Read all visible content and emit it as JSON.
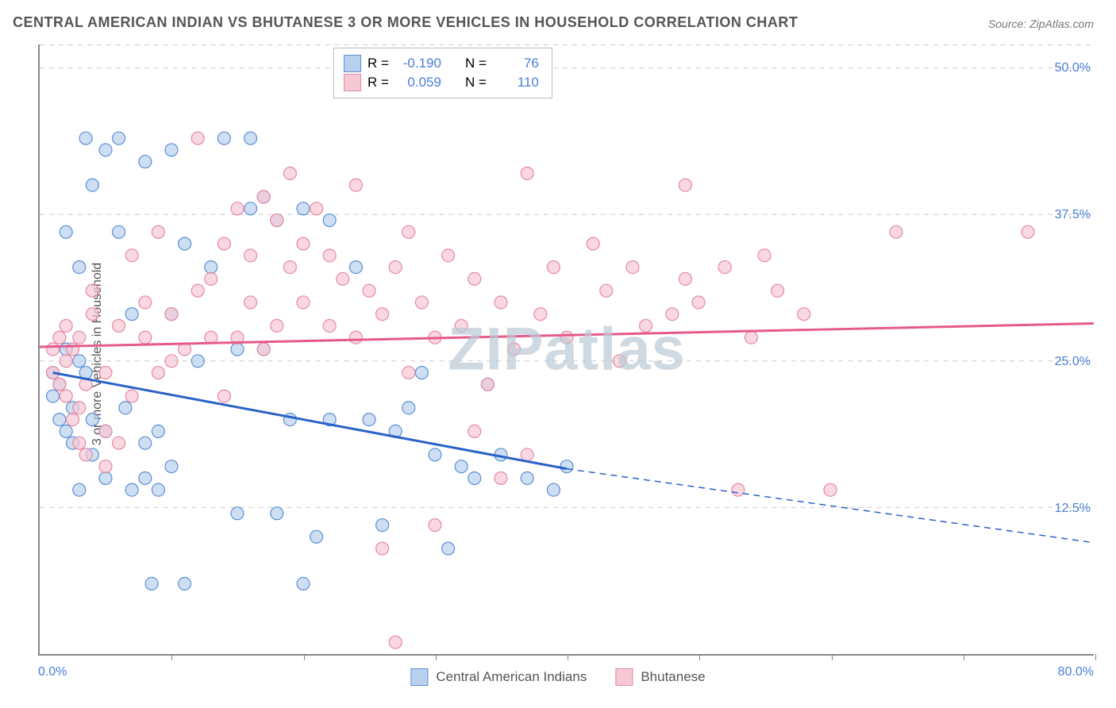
{
  "title": "CENTRAL AMERICAN INDIAN VS BHUTANESE 3 OR MORE VEHICLES IN HOUSEHOLD CORRELATION CHART",
  "source": "Source: ZipAtlas.com",
  "watermark": "ZIPatlas",
  "ylabel": "3 or more Vehicles in Household",
  "axes": {
    "x_min_label": "0.0%",
    "x_max_label": "80.0%",
    "xlim": [
      0,
      80
    ],
    "ylim": [
      0,
      52
    ]
  },
  "y_ticks": [
    {
      "value": 12.5,
      "label": "12.5%"
    },
    {
      "value": 25.0,
      "label": "25.0%"
    },
    {
      "value": 37.5,
      "label": "37.5%"
    },
    {
      "value": 50.0,
      "label": "50.0%"
    }
  ],
  "x_tick_positions": [
    10,
    20,
    30,
    40,
    50,
    60,
    70,
    80
  ],
  "series": [
    {
      "name": "Central American Indians",
      "color_fill": "#b9d1ee",
      "color_stroke": "#5a8fd6",
      "trend_color": "#2a62c6",
      "R": "-0.190",
      "N": "76",
      "trend": {
        "x1": 1,
        "y1": 24.0,
        "x2_solid": 40,
        "y2_solid": 15.8,
        "x2_dash": 80,
        "y2_dash": 9.5
      },
      "points": [
        [
          1,
          22
        ],
        [
          1,
          24
        ],
        [
          1.5,
          20
        ],
        [
          1.5,
          23
        ],
        [
          2,
          19
        ],
        [
          2,
          26
        ],
        [
          2,
          36
        ],
        [
          2.5,
          18
        ],
        [
          2.5,
          21
        ],
        [
          3,
          14
        ],
        [
          3,
          25
        ],
        [
          3,
          33
        ],
        [
          3.5,
          24
        ],
        [
          3.5,
          44
        ],
        [
          4,
          17
        ],
        [
          4,
          20
        ],
        [
          4,
          40
        ],
        [
          5,
          43
        ],
        [
          5,
          15
        ],
        [
          5,
          19
        ],
        [
          6,
          36
        ],
        [
          6,
          44
        ],
        [
          6.5,
          21
        ],
        [
          7,
          14
        ],
        [
          7,
          29
        ],
        [
          8,
          18
        ],
        [
          8,
          15
        ],
        [
          8,
          42
        ],
        [
          8.5,
          6
        ],
        [
          9,
          19
        ],
        [
          9,
          14
        ],
        [
          10,
          16
        ],
        [
          10,
          29
        ],
        [
          10,
          43
        ],
        [
          11,
          6
        ],
        [
          11,
          35
        ],
        [
          12,
          25
        ],
        [
          13,
          33
        ],
        [
          14,
          44
        ],
        [
          15,
          12
        ],
        [
          15,
          26
        ],
        [
          16,
          44
        ],
        [
          16,
          38
        ],
        [
          17,
          39
        ],
        [
          17,
          26
        ],
        [
          18,
          37
        ],
        [
          18,
          12
        ],
        [
          19,
          20
        ],
        [
          20,
          6
        ],
        [
          20,
          38
        ],
        [
          21,
          10
        ],
        [
          22,
          20
        ],
        [
          22,
          37
        ],
        [
          24,
          33
        ],
        [
          25,
          20
        ],
        [
          26,
          11
        ],
        [
          27,
          19
        ],
        [
          28,
          21
        ],
        [
          29,
          24
        ],
        [
          30,
          17
        ],
        [
          31,
          9
        ],
        [
          32,
          16
        ],
        [
          33,
          15
        ],
        [
          34,
          23
        ],
        [
          35,
          17
        ],
        [
          37,
          15
        ],
        [
          39,
          14
        ],
        [
          40,
          16
        ]
      ]
    },
    {
      "name": "Bhutanese",
      "color_fill": "#f6c8d4",
      "color_stroke": "#e689a3",
      "trend_color": "#e6598b",
      "R": "0.059",
      "N": "110",
      "trend": {
        "x1": 0,
        "y1": 26.2,
        "x2_solid": 80,
        "y2_solid": 28.2,
        "x2_dash": 80,
        "y2_dash": 28.2
      },
      "points": [
        [
          1,
          24
        ],
        [
          1,
          26
        ],
        [
          1.5,
          23
        ],
        [
          1.5,
          27
        ],
        [
          2,
          22
        ],
        [
          2,
          25
        ],
        [
          2,
          28
        ],
        [
          2.5,
          20
        ],
        [
          2.5,
          26
        ],
        [
          3,
          18
        ],
        [
          3,
          21
        ],
        [
          3,
          27
        ],
        [
          3.5,
          17
        ],
        [
          3.5,
          23
        ],
        [
          4,
          29
        ],
        [
          4,
          31
        ],
        [
          5,
          16
        ],
        [
          5,
          19
        ],
        [
          5,
          24
        ],
        [
          6,
          18
        ],
        [
          6,
          28
        ],
        [
          7,
          22
        ],
        [
          7,
          34
        ],
        [
          8,
          27
        ],
        [
          8,
          30
        ],
        [
          9,
          24
        ],
        [
          9,
          36
        ],
        [
          10,
          25
        ],
        [
          10,
          29
        ],
        [
          11,
          26
        ],
        [
          12,
          31
        ],
        [
          12,
          44
        ],
        [
          13,
          27
        ],
        [
          13,
          32
        ],
        [
          14,
          22
        ],
        [
          14,
          35
        ],
        [
          15,
          27
        ],
        [
          15,
          38
        ],
        [
          16,
          30
        ],
        [
          16,
          34
        ],
        [
          17,
          26
        ],
        [
          17,
          39
        ],
        [
          18,
          28
        ],
        [
          18,
          37
        ],
        [
          19,
          33
        ],
        [
          19,
          41
        ],
        [
          20,
          30
        ],
        [
          20,
          35
        ],
        [
          21,
          38
        ],
        [
          22,
          28
        ],
        [
          22,
          34
        ],
        [
          23,
          32
        ],
        [
          24,
          27
        ],
        [
          24,
          40
        ],
        [
          25,
          31
        ],
        [
          26,
          9
        ],
        [
          26,
          29
        ],
        [
          27,
          1
        ],
        [
          27,
          33
        ],
        [
          28,
          24
        ],
        [
          28,
          36
        ],
        [
          29,
          30
        ],
        [
          30,
          11
        ],
        [
          30,
          27
        ],
        [
          31,
          34
        ],
        [
          32,
          28
        ],
        [
          33,
          19
        ],
        [
          33,
          32
        ],
        [
          34,
          23
        ],
        [
          35,
          15
        ],
        [
          35,
          30
        ],
        [
          36,
          26
        ],
        [
          37,
          41
        ],
        [
          37,
          17
        ],
        [
          38,
          29
        ],
        [
          39,
          33
        ],
        [
          40,
          27
        ],
        [
          42,
          35
        ],
        [
          43,
          31
        ],
        [
          44,
          25
        ],
        [
          45,
          33
        ],
        [
          46,
          28
        ],
        [
          48,
          29
        ],
        [
          49,
          32
        ],
        [
          49,
          40
        ],
        [
          50,
          30
        ],
        [
          52,
          33
        ],
        [
          53,
          14
        ],
        [
          54,
          27
        ],
        [
          55,
          34
        ],
        [
          56,
          31
        ],
        [
          58,
          29
        ],
        [
          60,
          14
        ],
        [
          65,
          36
        ],
        [
          75,
          36
        ]
      ]
    }
  ],
  "legend": {
    "items": [
      {
        "label": "Central American Indians",
        "fill": "#b9d1ee",
        "stroke": "#5a8fd6"
      },
      {
        "label": "Bhutanese",
        "fill": "#f6c8d4",
        "stroke": "#e689a3"
      }
    ]
  },
  "stats_labels": {
    "R": "R =",
    "N": "N ="
  },
  "style": {
    "grid_color": "#cccccc",
    "marker_radius": 8,
    "marker_opacity": 0.7,
    "background": "#ffffff",
    "title_color": "#555555",
    "tick_color": "#4a7fd8"
  }
}
